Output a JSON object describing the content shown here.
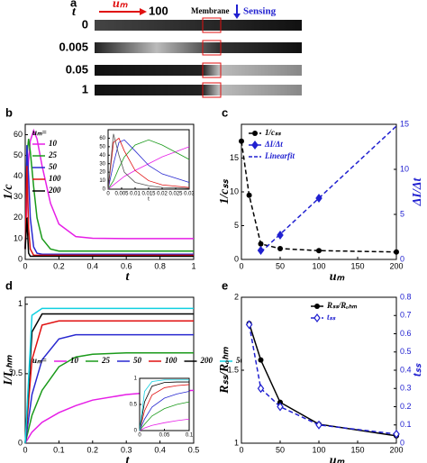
{
  "panel_a": {
    "label": "a",
    "t_label": "t",
    "um_label": "uₘ",
    "um_value": "100",
    "membrane": "Membrane",
    "sensing": "Sensing",
    "times": [
      "0",
      "0.005",
      "0.05",
      "1"
    ]
  },
  "chart_data": [
    {
      "type": "line",
      "label": "b",
      "xlabel": "t",
      "ylabel": "1/c",
      "legend_title": "uₘ=",
      "legend": "upper left",
      "x": [
        0,
        0.01,
        0.02,
        0.03,
        0.05,
        0.07,
        0.1,
        0.15,
        0.2,
        0.3,
        0.4,
        0.6,
        0.8,
        1
      ],
      "xlim": [
        0,
        1
      ],
      "xticks": [
        0,
        0.2,
        0.4,
        0.6,
        0.8,
        1
      ],
      "ylim": [
        0,
        65
      ],
      "yticks": [
        0,
        10,
        20,
        30,
        40,
        50,
        60
      ],
      "series": [
        {
          "name": "10",
          "color": "#e61ee6",
          "values": [
            5,
            30,
            48,
            57,
            62,
            58,
            45,
            27,
            17,
            11,
            10.2,
            10,
            10,
            10
          ]
        },
        {
          "name": "25",
          "color": "#1a9a1a",
          "values": [
            5,
            50,
            58,
            52,
            35,
            20,
            10,
            5,
            4,
            4,
            4,
            4,
            4,
            4
          ]
        },
        {
          "name": "50",
          "color": "#2828d0",
          "values": [
            5,
            55,
            40,
            20,
            6,
            3,
            2.5,
            2.5,
            2.5,
            2.5,
            2.5,
            2.5,
            2.5,
            2.5
          ]
        },
        {
          "name": "100",
          "color": "#e01010",
          "values": [
            5,
            45,
            15,
            5,
            2,
            2,
            2,
            2,
            2,
            2,
            2,
            2,
            2,
            2
          ]
        },
        {
          "name": "200",
          "color": "#000000",
          "values": [
            5,
            20,
            3,
            1.5,
            1.5,
            1.5,
            1.5,
            1.5,
            1.5,
            1.5,
            1.5,
            1.5,
            1.5,
            1.5
          ]
        }
      ]
    },
    {
      "type": "line",
      "xlabel": "t",
      "x": [
        0,
        0.002,
        0.004,
        0.006,
        0.01,
        0.015,
        0.02,
        0.03
      ],
      "xlim": [
        0,
        0.03
      ],
      "xticks": [
        0,
        0.005,
        0.01,
        0.015,
        0.02,
        0.025,
        0.03
      ],
      "ylim": [
        0,
        70
      ],
      "yticks": [
        0,
        10,
        20,
        30,
        40,
        50,
        60
      ],
      "series": [
        {
          "color": "#e61ee6",
          "values": [
            0,
            5,
            10,
            15,
            22,
            30,
            38,
            50
          ]
        },
        {
          "color": "#1a9a1a",
          "values": [
            0,
            10,
            25,
            38,
            52,
            58,
            52,
            35
          ]
        },
        {
          "color": "#2828d0",
          "values": [
            0,
            30,
            55,
            58,
            45,
            28,
            18,
            8
          ]
        },
        {
          "color": "#e01010",
          "values": [
            0,
            55,
            60,
            45,
            22,
            10,
            5,
            2
          ]
        },
        {
          "color": "#555555",
          "values": [
            0,
            65,
            40,
            20,
            8,
            4,
            2,
            1
          ]
        }
      ]
    },
    {
      "type": "line",
      "label": "c",
      "xlabel": "uₘ",
      "ylabel": "1/cₛₛ",
      "y2label": "ΔI/Δt",
      "legend": "upper left",
      "xlim": [
        0,
        200
      ],
      "xticks": [
        0,
        50,
        100,
        150,
        200
      ],
      "ylim": [
        0,
        20
      ],
      "yticks": [
        0,
        5,
        10,
        15
      ],
      "y2lim": [
        0,
        15
      ],
      "y2ticks": [
        0,
        5,
        10,
        15
      ],
      "series": [
        {
          "name": "1/cₛₛ",
          "color": "#000000",
          "dash": true,
          "marker": "circle",
          "x": [
            0,
            10,
            25,
            50,
            100,
            200
          ],
          "values": [
            17.5,
            9.5,
            2.3,
            1.6,
            1.3,
            1.1
          ]
        },
        {
          "name": "ΔI/Δt",
          "color": "#2020d0",
          "marker": "diamond",
          "axis": "y2",
          "x": [
            25,
            50,
            100
          ],
          "values": [
            1,
            2.7,
            6.8
          ]
        },
        {
          "name": "Linearfit",
          "color": "#2020d0",
          "dash": true,
          "axis": "y2",
          "x": [
            25,
            200
          ],
          "values": [
            0.8,
            14.8
          ]
        }
      ]
    },
    {
      "type": "line",
      "label": "d",
      "xlabel": "t",
      "ylabel": "I/Iₒₕₘ",
      "legend_title": "uₘ=",
      "legend": "center left",
      "x": [
        0,
        0.02,
        0.05,
        0.1,
        0.15,
        0.2,
        0.3,
        0.4,
        0.5
      ],
      "xlim": [
        0,
        0.5
      ],
      "xticks": [
        0,
        0.1,
        0.2,
        0.3,
        0.4,
        0.5
      ],
      "ylim": [
        0,
        1.05
      ],
      "yticks": [
        0,
        0.5,
        1
      ],
      "series": [
        {
          "name": "10",
          "color": "#e61ee6",
          "values": [
            0,
            0.08,
            0.15,
            0.22,
            0.27,
            0.31,
            0.35,
            0.37,
            0.38
          ]
        },
        {
          "name": "25",
          "color": "#1a9a1a",
          "values": [
            0,
            0.2,
            0.38,
            0.55,
            0.62,
            0.64,
            0.65,
            0.65,
            0.65
          ]
        },
        {
          "name": "50",
          "color": "#2828d0",
          "values": [
            0,
            0.35,
            0.6,
            0.75,
            0.78,
            0.78,
            0.78,
            0.78,
            0.78
          ]
        },
        {
          "name": "100",
          "color": "#e01010",
          "values": [
            0,
            0.6,
            0.85,
            0.88,
            0.88,
            0.88,
            0.88,
            0.88,
            0.88
          ]
        },
        {
          "name": "200",
          "color": "#000000",
          "values": [
            0,
            0.8,
            0.93,
            0.93,
            0.93,
            0.93,
            0.93,
            0.93,
            0.93
          ]
        },
        {
          "name": "500",
          "color": "#10d0e0",
          "values": [
            0,
            0.92,
            0.97,
            0.97,
            0.97,
            0.97,
            0.97,
            0.97,
            0.97
          ]
        }
      ]
    },
    {
      "type": "line",
      "x": [
        0,
        0.01,
        0.025,
        0.05,
        0.075,
        0.1
      ],
      "xlim": [
        0,
        0.1
      ],
      "xticks": [
        0,
        0.05,
        0.1
      ],
      "ylim": [
        0,
        1
      ],
      "yticks": [
        0,
        0.5,
        1
      ],
      "series": [
        {
          "color": "#e61ee6",
          "values": [
            0,
            0.05,
            0.1,
            0.15,
            0.19,
            0.22
          ]
        },
        {
          "color": "#1a9a1a",
          "values": [
            0,
            0.12,
            0.28,
            0.42,
            0.5,
            0.55
          ]
        },
        {
          "color": "#2828d0",
          "values": [
            0,
            0.22,
            0.45,
            0.62,
            0.7,
            0.75
          ]
        },
        {
          "color": "#e01010",
          "values": [
            0,
            0.38,
            0.68,
            0.82,
            0.86,
            0.88
          ]
        },
        {
          "color": "#000000",
          "values": [
            0,
            0.55,
            0.85,
            0.92,
            0.93,
            0.93
          ]
        },
        {
          "color": "#10d0e0",
          "values": [
            0,
            0.75,
            0.94,
            0.97,
            0.97,
            0.97
          ]
        }
      ]
    },
    {
      "type": "line",
      "label": "e",
      "xlabel": "uₘ",
      "ylabel": "Rₛₛ/Rₒₕₘ",
      "y2label": "tₛₛ",
      "legend": "upper right",
      "xlim": [
        0,
        200
      ],
      "xticks": [
        0,
        50,
        100,
        150,
        200
      ],
      "ylim": [
        1,
        2
      ],
      "yticks": [
        1,
        1.5,
        2
      ],
      "y2lim": [
        0,
        0.8
      ],
      "y2ticks": [
        0,
        0.1,
        0.2,
        0.3,
        0.4,
        0.5,
        0.6,
        0.7,
        0.8
      ],
      "series": [
        {
          "name": "Rₛₛ/Rₒₕₘ",
          "color": "#000000",
          "marker": "circle",
          "x": [
            10,
            25,
            50,
            100,
            200
          ],
          "values": [
            1.82,
            1.57,
            1.28,
            1.13,
            1.05
          ]
        },
        {
          "name": "tₛₛ",
          "color": "#2020d0",
          "dash": true,
          "marker": "diamond-open",
          "axis": "y2",
          "x": [
            10,
            25,
            50,
            100,
            200
          ],
          "values": [
            0.65,
            0.3,
            0.2,
            0.1,
            0.05
          ]
        }
      ]
    }
  ]
}
